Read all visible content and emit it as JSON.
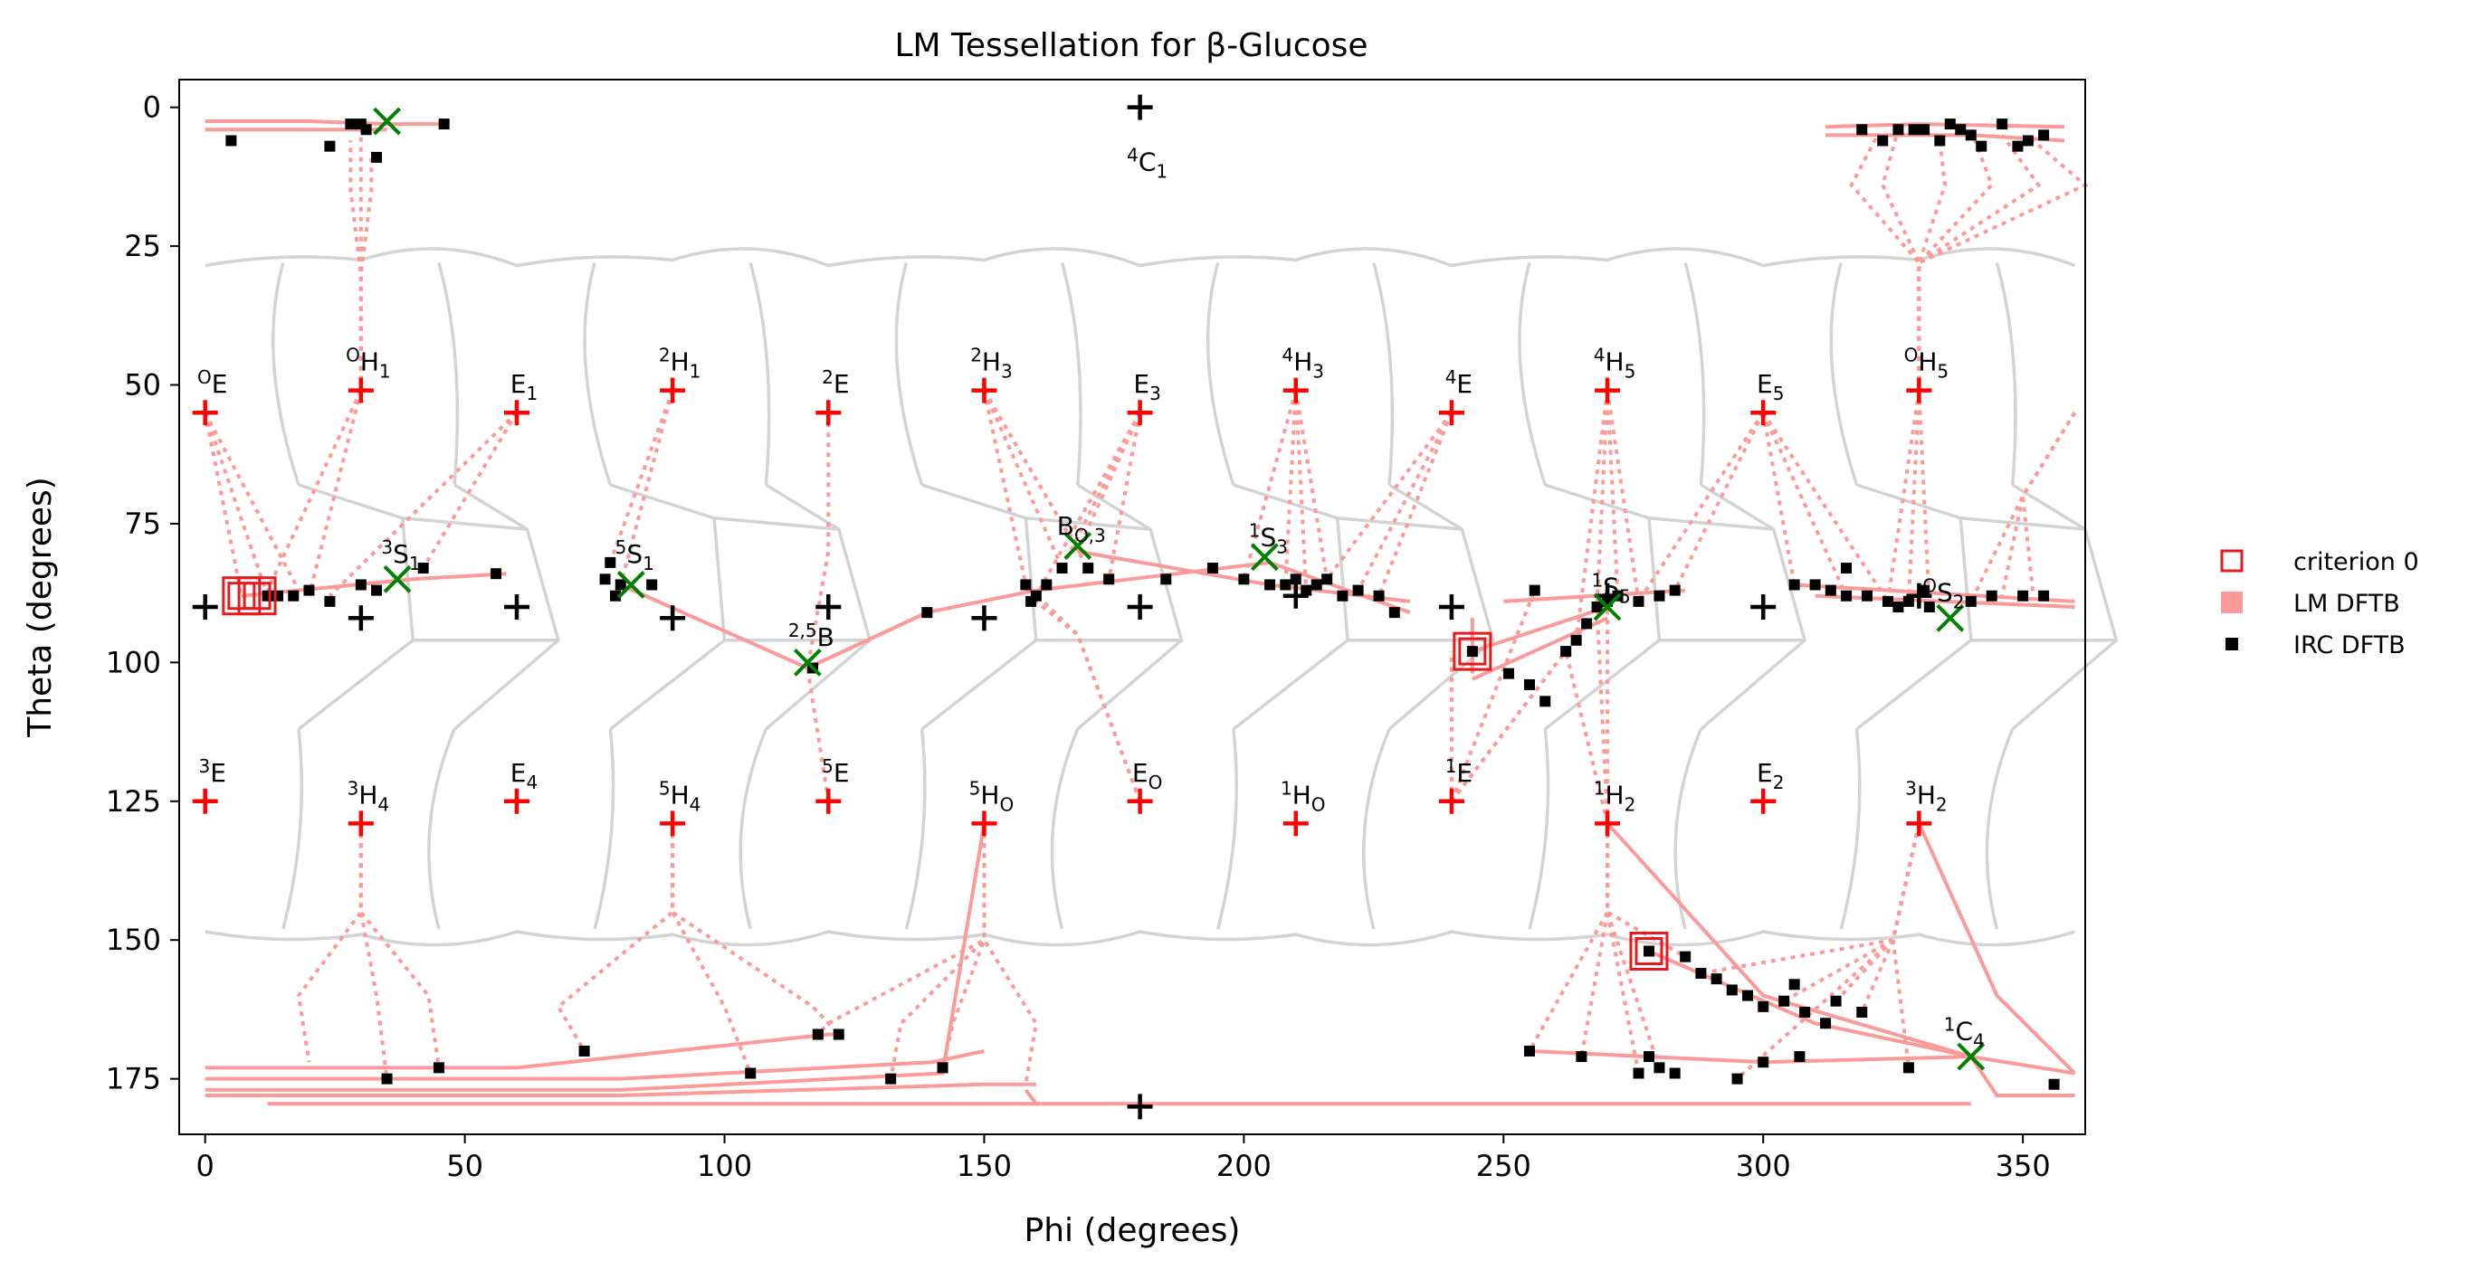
{
  "chart_data": {
    "type": "scatter",
    "title": "LM Tessellation for β-Glucose",
    "xlabel": "Phi (degrees)",
    "ylabel": "Theta (degrees)",
    "xlim": [
      -5,
      362
    ],
    "ylim": [
      185,
      -5
    ],
    "y_inverted": true,
    "xticks": [
      0,
      50,
      100,
      150,
      200,
      250,
      300,
      350
    ],
    "yticks": [
      0,
      25,
      50,
      75,
      100,
      125,
      150,
      175
    ],
    "grid": false,
    "legend_position": "outside-right",
    "colors": {
      "criterion": "#e41a1c",
      "lm": "#fb9a99",
      "irc": "#000000",
      "tess": "#d3d3d3",
      "ts": "#008000",
      "center_black": "#000000",
      "center_red": "#ff0000"
    },
    "legend": [
      {
        "label": "criterion 0",
        "marker": "open-square",
        "color": "#e41a1c"
      },
      {
        "label": "LM DFTB",
        "marker": "filled-square",
        "color": "#fb9a99"
      },
      {
        "label": "IRC DFTB",
        "marker": "filled-square",
        "color": "#000000"
      }
    ],
    "conformer_centers": [
      {
        "sup": "4",
        "main": "C",
        "sub": "1",
        "phi": 180,
        "theta": 0,
        "color": "black",
        "label_pos": "below"
      },
      {
        "sup": "1",
        "main": "C",
        "sub": "4",
        "phi": 180,
        "theta": 180,
        "color": "black",
        "label_pos": "none"
      },
      {
        "sup": "O",
        "main": "E",
        "sub": "",
        "phi": 0,
        "theta": 55,
        "color": "red",
        "label_pos": "above"
      },
      {
        "sup": "O",
        "main": "H",
        "sub": "1",
        "phi": 30,
        "theta": 51,
        "color": "red",
        "label_pos": "above"
      },
      {
        "sup": "",
        "main": "E",
        "sub": "1",
        "phi": 60,
        "theta": 55,
        "color": "red",
        "label_pos": "above"
      },
      {
        "sup": "2",
        "main": "H",
        "sub": "1",
        "phi": 90,
        "theta": 51,
        "color": "red",
        "label_pos": "above"
      },
      {
        "sup": "2",
        "main": "E",
        "sub": "",
        "phi": 120,
        "theta": 55,
        "color": "red",
        "label_pos": "above"
      },
      {
        "sup": "2",
        "main": "H",
        "sub": "3",
        "phi": 150,
        "theta": 51,
        "color": "red",
        "label_pos": "above"
      },
      {
        "sup": "",
        "main": "E",
        "sub": "3",
        "phi": 180,
        "theta": 55,
        "color": "red",
        "label_pos": "above"
      },
      {
        "sup": "4",
        "main": "H",
        "sub": "3",
        "phi": 210,
        "theta": 51,
        "color": "red",
        "label_pos": "above"
      },
      {
        "sup": "4",
        "main": "E",
        "sub": "",
        "phi": 240,
        "theta": 55,
        "color": "red",
        "label_pos": "above"
      },
      {
        "sup": "4",
        "main": "H",
        "sub": "5",
        "phi": 270,
        "theta": 51,
        "color": "red",
        "label_pos": "above"
      },
      {
        "sup": "",
        "main": "E",
        "sub": "5",
        "phi": 300,
        "theta": 55,
        "color": "red",
        "label_pos": "above"
      },
      {
        "sup": "O",
        "main": "H",
        "sub": "5",
        "phi": 330,
        "theta": 51,
        "color": "red",
        "label_pos": "above"
      },
      {
        "sup": "3",
        "main": "E",
        "sub": "",
        "phi": 0,
        "theta": 125,
        "color": "red",
        "label_pos": "above"
      },
      {
        "sup": "3",
        "main": "H",
        "sub": "4",
        "phi": 30,
        "theta": 129,
        "color": "red",
        "label_pos": "above"
      },
      {
        "sup": "",
        "main": "E",
        "sub": "4",
        "phi": 60,
        "theta": 125,
        "color": "red",
        "label_pos": "above"
      },
      {
        "sup": "5",
        "main": "H",
        "sub": "4",
        "phi": 90,
        "theta": 129,
        "color": "red",
        "label_pos": "above"
      },
      {
        "sup": "5",
        "main": "E",
        "sub": "",
        "phi": 120,
        "theta": 125,
        "color": "red",
        "label_pos": "above"
      },
      {
        "sup": "5",
        "main": "H",
        "sub": "O",
        "phi": 150,
        "theta": 129,
        "color": "red",
        "label_pos": "above"
      },
      {
        "sup": "",
        "main": "E",
        "sub": "O",
        "phi": 180,
        "theta": 125,
        "color": "red",
        "label_pos": "above"
      },
      {
        "sup": "1",
        "main": "H",
        "sub": "O",
        "phi": 210,
        "theta": 129,
        "color": "red",
        "label_pos": "above"
      },
      {
        "sup": "1",
        "main": "E",
        "sub": "",
        "phi": 240,
        "theta": 125,
        "color": "red",
        "label_pos": "above"
      },
      {
        "sup": "1",
        "main": "H",
        "sub": "2",
        "phi": 270,
        "theta": 129,
        "color": "red",
        "label_pos": "above"
      },
      {
        "sup": "",
        "main": "E",
        "sub": "2",
        "phi": 300,
        "theta": 125,
        "color": "red",
        "label_pos": "above"
      },
      {
        "sup": "3",
        "main": "H",
        "sub": "2",
        "phi": 330,
        "theta": 129,
        "color": "red",
        "label_pos": "above"
      },
      {
        "sup": "",
        "main": "",
        "sub": "",
        "phi": 0,
        "theta": 90,
        "color": "black",
        "label_pos": "none"
      },
      {
        "sup": "",
        "main": "",
        "sub": "",
        "phi": 30,
        "theta": 92,
        "color": "black",
        "label_pos": "none"
      },
      {
        "sup": "",
        "main": "",
        "sub": "",
        "phi": 60,
        "theta": 90,
        "color": "black",
        "label_pos": "none"
      },
      {
        "sup": "",
        "main": "",
        "sub": "",
        "phi": 90,
        "theta": 92,
        "color": "black",
        "label_pos": "none"
      },
      {
        "sup": "",
        "main": "",
        "sub": "",
        "phi": 120,
        "theta": 90,
        "color": "black",
        "label_pos": "none"
      },
      {
        "sup": "",
        "main": "",
        "sub": "",
        "phi": 150,
        "theta": 92,
        "color": "black",
        "label_pos": "none"
      },
      {
        "sup": "",
        "main": "",
        "sub": "",
        "phi": 180,
        "theta": 90,
        "color": "black",
        "label_pos": "none"
      },
      {
        "sup": "",
        "main": "",
        "sub": "",
        "phi": 210,
        "theta": 88,
        "color": "black",
        "label_pos": "none"
      },
      {
        "sup": "",
        "main": "",
        "sub": "",
        "phi": 240,
        "theta": 90,
        "color": "black",
        "label_pos": "none"
      },
      {
        "sup": "",
        "main": "",
        "sub": "",
        "phi": 270,
        "theta": 88,
        "color": "black",
        "label_pos": "none"
      },
      {
        "sup": "",
        "main": "",
        "sub": "",
        "phi": 300,
        "theta": 90,
        "color": "black",
        "label_pos": "none"
      },
      {
        "sup": "",
        "main": "",
        "sub": "",
        "phi": 330,
        "theta": 88,
        "color": "black",
        "label_pos": "none"
      }
    ],
    "boat_skew_labels": [
      {
        "sup": "3",
        "main": "S",
        "sub": "1",
        "phi": 37,
        "theta": 81
      },
      {
        "sup": "5",
        "main": "S",
        "sub": "1",
        "phi": 82,
        "theta": 81
      },
      {
        "sup": "2,5",
        "main": "B",
        "sub": "",
        "phi": 116,
        "theta": 96
      },
      {
        "sup": "",
        "main": "B",
        "sub": "O,3",
        "phi": 168,
        "theta": 76
      },
      {
        "sup": "1",
        "main": "S",
        "sub": "3",
        "phi": 204,
        "theta": 78
      },
      {
        "sup": "1",
        "main": "S",
        "sub": "5",
        "phi": 270,
        "theta": 87
      },
      {
        "sup": "O",
        "main": "S",
        "sub": "2",
        "phi": 334,
        "theta": 88
      },
      {
        "sup": "1",
        "main": "C",
        "sub": "4",
        "phi": 338,
        "theta": 167
      }
    ],
    "transition_markers": [
      {
        "phi": 35,
        "theta": 2.5
      },
      {
        "phi": 37,
        "theta": 85
      },
      {
        "phi": 82,
        "theta": 86
      },
      {
        "phi": 116,
        "theta": 100
      },
      {
        "phi": 168,
        "theta": 79
      },
      {
        "phi": 204,
        "theta": 81
      },
      {
        "phi": 270,
        "theta": 90
      },
      {
        "phi": 336,
        "theta": 92
      },
      {
        "phi": 340,
        "theta": 171
      }
    ],
    "criterion_0": [
      {
        "phi": 7,
        "theta": 88
      },
      {
        "phi": 10,
        "theta": 88
      },
      {
        "phi": 244,
        "theta": 98
      },
      {
        "phi": 278,
        "theta": 152
      }
    ],
    "lm_dftb": [
      {
        "phi": 7,
        "theta": 88
      },
      {
        "phi": 35,
        "theta": 4
      },
      {
        "phi": 243,
        "theta": 98
      },
      {
        "phi": 278,
        "theta": 152
      },
      {
        "phi": 270,
        "theta": 90
      },
      {
        "phi": 340,
        "theta": 171
      },
      {
        "phi": 80,
        "theta": 86
      },
      {
        "phi": 168,
        "theta": 80
      },
      {
        "phi": 116,
        "theta": 101
      }
    ],
    "irc_dftb": [
      {
        "phi": 5,
        "theta": 6
      },
      {
        "phi": 24,
        "theta": 7
      },
      {
        "phi": 28,
        "theta": 3
      },
      {
        "phi": 30,
        "theta": 3
      },
      {
        "phi": 33,
        "theta": 9
      },
      {
        "phi": 46,
        "theta": 3
      },
      {
        "phi": 31,
        "theta": 4
      },
      {
        "phi": 319,
        "theta": 4
      },
      {
        "phi": 323,
        "theta": 6
      },
      {
        "phi": 326,
        "theta": 4
      },
      {
        "phi": 329,
        "theta": 4
      },
      {
        "phi": 334,
        "theta": 6
      },
      {
        "phi": 336,
        "theta": 3
      },
      {
        "phi": 340,
        "theta": 5
      },
      {
        "phi": 342,
        "theta": 7
      },
      {
        "phi": 346,
        "theta": 3
      },
      {
        "phi": 349,
        "theta": 7
      },
      {
        "phi": 351,
        "theta": 6
      },
      {
        "phi": 354,
        "theta": 5
      },
      {
        "phi": 331,
        "theta": 4
      },
      {
        "phi": 338,
        "theta": 4
      },
      {
        "phi": 12,
        "theta": 88
      },
      {
        "phi": 14,
        "theta": 88
      },
      {
        "phi": 17,
        "theta": 88
      },
      {
        "phi": 20,
        "theta": 87
      },
      {
        "phi": 24,
        "theta": 89
      },
      {
        "phi": 30,
        "theta": 86
      },
      {
        "phi": 33,
        "theta": 87
      },
      {
        "phi": 42,
        "theta": 83
      },
      {
        "phi": 56,
        "theta": 84
      },
      {
        "phi": 77,
        "theta": 85
      },
      {
        "phi": 78,
        "theta": 82
      },
      {
        "phi": 79,
        "theta": 88
      },
      {
        "phi": 86,
        "theta": 86
      },
      {
        "phi": 80,
        "theta": 86
      },
      {
        "phi": 117,
        "theta": 101
      },
      {
        "phi": 139,
        "theta": 91
      },
      {
        "phi": 158,
        "theta": 86
      },
      {
        "phi": 159,
        "theta": 89
      },
      {
        "phi": 160,
        "theta": 88
      },
      {
        "phi": 162,
        "theta": 86
      },
      {
        "phi": 165,
        "theta": 83
      },
      {
        "phi": 170,
        "theta": 83
      },
      {
        "phi": 174,
        "theta": 85
      },
      {
        "phi": 185,
        "theta": 85
      },
      {
        "phi": 194,
        "theta": 83
      },
      {
        "phi": 200,
        "theta": 85
      },
      {
        "phi": 205,
        "theta": 86
      },
      {
        "phi": 208,
        "theta": 86
      },
      {
        "phi": 210,
        "theta": 85
      },
      {
        "phi": 212,
        "theta": 87
      },
      {
        "phi": 214,
        "theta": 86
      },
      {
        "phi": 216,
        "theta": 85
      },
      {
        "phi": 219,
        "theta": 88
      },
      {
        "phi": 222,
        "theta": 87
      },
      {
        "phi": 226,
        "theta": 88
      },
      {
        "phi": 229,
        "theta": 91
      },
      {
        "phi": 244,
        "theta": 98
      },
      {
        "phi": 251,
        "theta": 102
      },
      {
        "phi": 255,
        "theta": 104
      },
      {
        "phi": 258,
        "theta": 107
      },
      {
        "phi": 262,
        "theta": 98
      },
      {
        "phi": 264,
        "theta": 96
      },
      {
        "phi": 266,
        "theta": 93
      },
      {
        "phi": 268,
        "theta": 90
      },
      {
        "phi": 270,
        "theta": 89
      },
      {
        "phi": 272,
        "theta": 88
      },
      {
        "phi": 276,
        "theta": 89
      },
      {
        "phi": 280,
        "theta": 88
      },
      {
        "phi": 283,
        "theta": 87
      },
      {
        "phi": 256,
        "theta": 87
      },
      {
        "phi": 306,
        "theta": 86
      },
      {
        "phi": 310,
        "theta": 86
      },
      {
        "phi": 313,
        "theta": 87
      },
      {
        "phi": 316,
        "theta": 88
      },
      {
        "phi": 320,
        "theta": 88
      },
      {
        "phi": 324,
        "theta": 89
      },
      {
        "phi": 326,
        "theta": 90
      },
      {
        "phi": 328,
        "theta": 89
      },
      {
        "phi": 332,
        "theta": 90
      },
      {
        "phi": 340,
        "theta": 89
      },
      {
        "phi": 344,
        "theta": 88
      },
      {
        "phi": 350,
        "theta": 88
      },
      {
        "phi": 354,
        "theta": 88
      },
      {
        "phi": 331,
        "theta": 87
      },
      {
        "phi": 316,
        "theta": 83
      },
      {
        "phi": 255,
        "theta": 170
      },
      {
        "phi": 265,
        "theta": 171
      },
      {
        "phi": 276,
        "theta": 174
      },
      {
        "phi": 278,
        "theta": 171
      },
      {
        "phi": 280,
        "theta": 173
      },
      {
        "phi": 283,
        "theta": 174
      },
      {
        "phi": 285,
        "theta": 153
      },
      {
        "phi": 288,
        "theta": 156
      },
      {
        "phi": 291,
        "theta": 157
      },
      {
        "phi": 294,
        "theta": 159
      },
      {
        "phi": 297,
        "theta": 160
      },
      {
        "phi": 300,
        "theta": 162
      },
      {
        "phi": 304,
        "theta": 161
      },
      {
        "phi": 308,
        "theta": 163
      },
      {
        "phi": 314,
        "theta": 161
      },
      {
        "phi": 319,
        "theta": 163
      },
      {
        "phi": 295,
        "theta": 175
      },
      {
        "phi": 300,
        "theta": 172
      },
      {
        "phi": 307,
        "theta": 171
      },
      {
        "phi": 328,
        "theta": 173
      },
      {
        "phi": 356,
        "theta": 176
      },
      {
        "phi": 278,
        "theta": 152
      },
      {
        "phi": 306,
        "theta": 158
      },
      {
        "phi": 312,
        "theta": 165
      },
      {
        "phi": 35,
        "theta": 175
      },
      {
        "phi": 45,
        "theta": 173
      },
      {
        "phi": 73,
        "theta": 170
      },
      {
        "phi": 105,
        "theta": 174
      },
      {
        "phi": 118,
        "theta": 167
      },
      {
        "phi": 122,
        "theta": 167
      },
      {
        "phi": 132,
        "theta": 175
      },
      {
        "phi": 142,
        "theta": 173
      }
    ]
  }
}
